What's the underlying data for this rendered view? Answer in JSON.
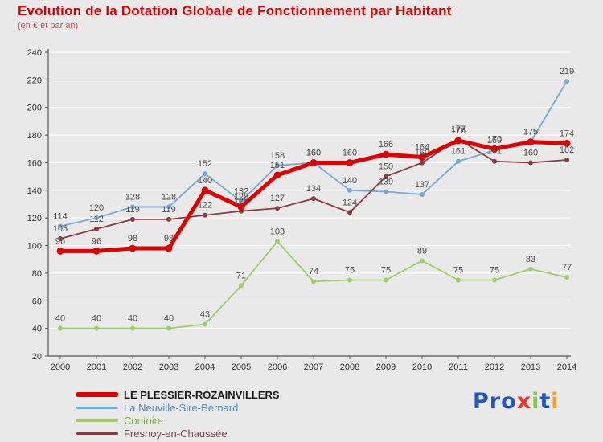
{
  "title": "Evolution de la Dotation Globale de Fonctionnement par Habitant",
  "subtitle": "(en € et par an)",
  "colors": {
    "background": "#e9e9e9",
    "title": "#d90000",
    "grid": "#ffffff",
    "axis": "#555555",
    "tick_text": "#333333",
    "value_label": "#4d4d4d"
  },
  "chart_data": {
    "type": "line",
    "x": [
      2000,
      2001,
      2002,
      2003,
      2004,
      2005,
      2006,
      2007,
      2008,
      2009,
      2010,
      2011,
      2012,
      2013,
      2014
    ],
    "ylim": [
      20,
      240
    ],
    "ytick_step": 20,
    "grid": "horizontal",
    "legend_position": "bottom-left",
    "series": [
      {
        "name": "LE PLESSIER-ROZAINVILLERS",
        "color": "#dd0000",
        "legend_text_color": "#1a1a1a",
        "thick": true,
        "values": [
          96,
          96,
          98,
          98,
          140,
          128,
          151,
          160,
          160,
          166,
          164,
          176,
          170,
          175,
          174
        ]
      },
      {
        "name": "La Neuville-Sire-Bernard",
        "color": "#74a9d8",
        "legend_text_color": "#4a89c8",
        "thick": false,
        "values": [
          114,
          120,
          128,
          128,
          152,
          132,
          158,
          160,
          140,
          139,
          137,
          161,
          169,
          175,
          219
        ]
      },
      {
        "name": "Contoire",
        "color": "#9cce6a",
        "legend_text_color": "#7cb342",
        "thick": false,
        "values": [
          40,
          40,
          40,
          40,
          43,
          71,
          103,
          74,
          75,
          75,
          89,
          75,
          75,
          83,
          77
        ]
      },
      {
        "name": "Fresnoy-en-Chaussée",
        "color": "#8a3c3c",
        "legend_text_color": "#8a3c3c",
        "thick": false,
        "values": [
          105,
          112,
          119,
          119,
          122,
          125,
          127,
          134,
          124,
          150,
          160,
          177,
          161,
          160,
          162
        ]
      }
    ]
  },
  "logo": {
    "letters": [
      {
        "ch": "P",
        "color": "#2456c0"
      },
      {
        "ch": "r",
        "color": "#2456c0"
      },
      {
        "ch": "o",
        "color": "#2456c0"
      },
      {
        "ch": "x",
        "color": "#e8392b"
      },
      {
        "ch": "i",
        "color": "#8cc63e"
      },
      {
        "ch": "t",
        "color": "#2456c0"
      },
      {
        "ch": "i",
        "color": "#f5a11c"
      }
    ]
  }
}
